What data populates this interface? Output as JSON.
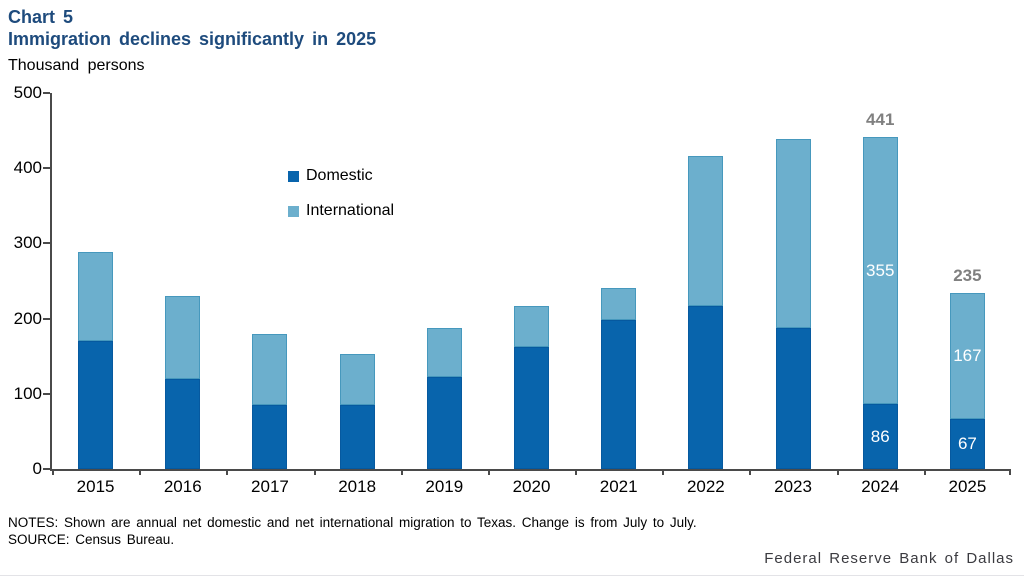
{
  "header": {
    "chart_label": "Chart 5",
    "chart_title": "Immigration declines significantly in 2025",
    "unit_label": "Thousand persons"
  },
  "chart_data": {
    "type": "bar",
    "stacked": true,
    "title": "Immigration declines significantly in 2025",
    "ylabel": "Thousand persons",
    "xlabel": "",
    "ylim": [
      0,
      500
    ],
    "yticks": [
      0,
      100,
      200,
      300,
      400,
      500
    ],
    "grid": false,
    "legend_position": "inside-upper-left",
    "categories": [
      "2015",
      "2016",
      "2017",
      "2018",
      "2019",
      "2020",
      "2021",
      "2022",
      "2023",
      "2024",
      "2025"
    ],
    "series": [
      {
        "name": "Domestic",
        "color": "#0864ac",
        "values": [
          170,
          120,
          85,
          85,
          122,
          162,
          198,
          217,
          188,
          86,
          67
        ]
      },
      {
        "name": "International",
        "color": "#6cafcd",
        "values": [
          118,
          110,
          95,
          68,
          65,
          54,
          43,
          199,
          251,
          355,
          167
        ]
      }
    ],
    "totals": [
      288,
      230,
      180,
      153,
      187,
      216,
      241,
      416,
      439,
      441,
      235
    ],
    "bar_value_labels": [
      {
        "year": "2024",
        "target": "total",
        "text": "441"
      },
      {
        "year": "2024",
        "target": "international",
        "text": "355"
      },
      {
        "year": "2024",
        "target": "domestic",
        "text": "86"
      },
      {
        "year": "2025",
        "target": "total",
        "text": "235"
      },
      {
        "year": "2025",
        "target": "international",
        "text": "167"
      },
      {
        "year": "2025",
        "target": "domestic",
        "text": "67"
      }
    ]
  },
  "notes": {
    "notes_line": "NOTES: Shown are annual net domestic and net international migration to Texas. Change is from July to July.",
    "source_line": "SOURCE: Census Bureau."
  },
  "footer": {
    "brand": "Federal Reserve Bank of Dallas"
  },
  "colors": {
    "title": "#1e4b7d",
    "domestic": "#0864ac",
    "international": "#6cafcd",
    "total_label": "#808080",
    "axis": "#4a4a4a",
    "footer_text": "#3b3b40"
  }
}
